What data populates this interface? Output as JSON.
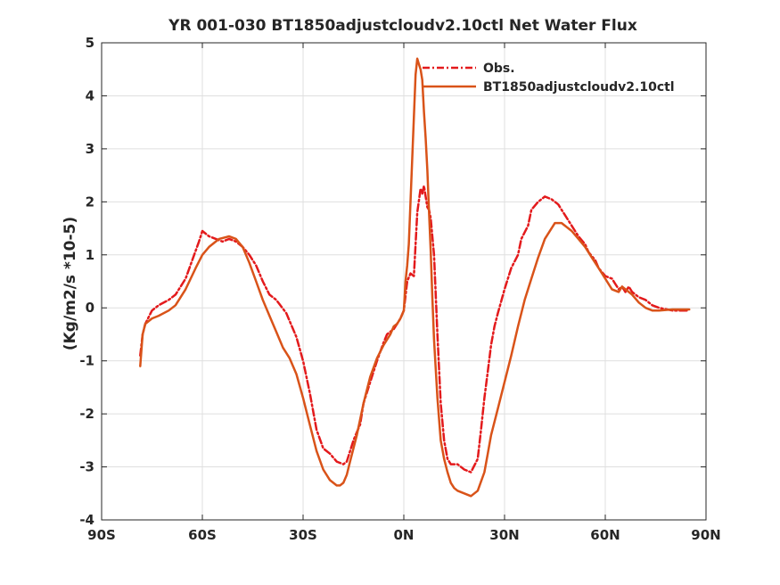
{
  "chart_data": {
    "type": "line",
    "title": "YR 001-030 BT1850adjustcloudv2.10ctl  Net Water Flux",
    "ylabel": "(Kg/m2/s *10-5)",
    "xlabel": "",
    "xlim": [
      -90,
      90
    ],
    "ylim": [
      -4,
      5
    ],
    "xticks": [
      -90,
      -60,
      -30,
      0,
      30,
      60,
      90
    ],
    "xtick_labels": [
      "90S",
      "60S",
      "30S",
      "0N",
      "30N",
      "60N",
      "90N"
    ],
    "yticks": [
      -4,
      -3,
      -2,
      -1,
      0,
      1,
      2,
      3,
      4,
      5
    ],
    "ytick_labels": [
      "-4",
      "-3",
      "-2",
      "-1",
      "0",
      "1",
      "2",
      "3",
      "4",
      "5"
    ],
    "grid": true,
    "legend_position": "top-right",
    "series": [
      {
        "name": "Obs.",
        "color": "#e31a1c",
        "style": "dashed",
        "x": [
          -78.5,
          -77.8,
          -77,
          -75,
          -73,
          -70,
          -68,
          -65,
          -63,
          -61,
          -60,
          -58,
          -56,
          -54,
          -52,
          -50,
          -48,
          -46,
          -44,
          -42,
          -40,
          -38,
          -35,
          -32,
          -30,
          -28,
          -26,
          -24,
          -22,
          -20,
          -18,
          -17,
          -15,
          -13,
          -12,
          -10,
          -8,
          -6,
          -5,
          -3,
          -2,
          -1,
          0,
          1,
          2,
          3,
          4,
          5,
          5.5,
          6,
          6.5,
          7,
          7.5,
          8,
          9,
          10,
          11,
          12,
          13,
          14,
          15,
          16,
          18,
          20,
          22,
          23,
          24,
          25,
          26,
          27,
          28,
          30,
          32,
          34,
          35,
          37,
          38,
          40,
          42,
          44,
          45,
          46,
          47,
          48,
          50,
          52,
          54,
          55,
          57,
          58,
          60,
          62,
          63,
          64,
          65,
          66,
          67,
          68,
          70,
          72,
          74,
          76,
          80,
          85
        ],
        "values": [
          -0.9,
          -0.5,
          -0.3,
          -0.05,
          0.05,
          0.15,
          0.25,
          0.55,
          0.9,
          1.25,
          1.45,
          1.35,
          1.3,
          1.25,
          1.3,
          1.25,
          1.15,
          1.0,
          0.8,
          0.5,
          0.25,
          0.15,
          -0.1,
          -0.55,
          -1.0,
          -1.6,
          -2.3,
          -2.65,
          -2.75,
          -2.9,
          -2.95,
          -2.9,
          -2.5,
          -2.2,
          -1.8,
          -1.4,
          -1.0,
          -0.65,
          -0.5,
          -0.4,
          -0.3,
          -0.2,
          -0.05,
          0.5,
          0.65,
          0.6,
          1.8,
          2.25,
          2.15,
          2.3,
          2.1,
          1.9,
          1.85,
          1.7,
          1.0,
          -0.5,
          -1.8,
          -2.5,
          -2.85,
          -2.95,
          -2.95,
          -2.95,
          -3.05,
          -3.1,
          -2.85,
          -2.3,
          -1.7,
          -1.2,
          -0.7,
          -0.35,
          -0.1,
          0.35,
          0.75,
          1.0,
          1.3,
          1.55,
          1.85,
          2.0,
          2.1,
          2.05,
          2.0,
          1.95,
          1.85,
          1.75,
          1.55,
          1.35,
          1.2,
          1.05,
          0.9,
          0.75,
          0.6,
          0.55,
          0.45,
          0.35,
          0.4,
          0.3,
          0.4,
          0.3,
          0.2,
          0.15,
          0.05,
          0.0,
          -0.05,
          -0.05
        ]
      },
      {
        "name": "BT1850adjustcloudv2.10ctl",
        "color": "#d95319",
        "style": "solid",
        "x": [
          -78.5,
          -77.8,
          -77,
          -75,
          -73,
          -70,
          -68,
          -65,
          -62,
          -60,
          -58,
          -55,
          -52,
          -50,
          -48,
          -46,
          -44,
          -42,
          -40,
          -38,
          -36,
          -34,
          -32,
          -30,
          -28,
          -26,
          -24,
          -22,
          -20,
          -19,
          -18,
          -17,
          -16,
          -14,
          -12,
          -10,
          -8,
          -6,
          -4,
          -3,
          -2,
          -1,
          0,
          0.5,
          1,
          1.5,
          2,
          2.5,
          3,
          3.5,
          4,
          4.5,
          5,
          5.5,
          6,
          6.5,
          7,
          7.5,
          8,
          8.5,
          9,
          10,
          11,
          12,
          13,
          14,
          15,
          16,
          18,
          20,
          22,
          24,
          25,
          26,
          28,
          30,
          32,
          34,
          36,
          38,
          40,
          42,
          44,
          45,
          46,
          47,
          48,
          50,
          52,
          54,
          56,
          58,
          60,
          62,
          64,
          65,
          66,
          68,
          70,
          72,
          74,
          76,
          80,
          85
        ],
        "values": [
          -1.1,
          -0.5,
          -0.3,
          -0.2,
          -0.15,
          -0.05,
          0.05,
          0.35,
          0.75,
          1.0,
          1.15,
          1.3,
          1.35,
          1.3,
          1.15,
          0.85,
          0.5,
          0.15,
          -0.15,
          -0.45,
          -0.75,
          -0.95,
          -1.25,
          -1.7,
          -2.2,
          -2.7,
          -3.05,
          -3.25,
          -3.35,
          -3.35,
          -3.3,
          -3.15,
          -2.9,
          -2.4,
          -1.8,
          -1.3,
          -0.95,
          -0.7,
          -0.5,
          -0.35,
          -0.3,
          -0.2,
          -0.05,
          0.5,
          0.8,
          1.2,
          2.0,
          2.8,
          3.6,
          4.4,
          4.7,
          4.6,
          4.5,
          4.3,
          3.7,
          3.2,
          2.6,
          1.8,
          1.1,
          0.2,
          -0.6,
          -1.7,
          -2.5,
          -2.85,
          -3.1,
          -3.3,
          -3.4,
          -3.45,
          -3.5,
          -3.55,
          -3.45,
          -3.1,
          -2.75,
          -2.4,
          -1.9,
          -1.4,
          -0.9,
          -0.35,
          0.15,
          0.55,
          0.95,
          1.3,
          1.5,
          1.6,
          1.6,
          1.6,
          1.55,
          1.45,
          1.3,
          1.15,
          0.95,
          0.75,
          0.55,
          0.35,
          0.3,
          0.4,
          0.35,
          0.25,
          0.1,
          0.0,
          -0.05,
          -0.05,
          -0.03,
          -0.03
        ]
      }
    ]
  }
}
